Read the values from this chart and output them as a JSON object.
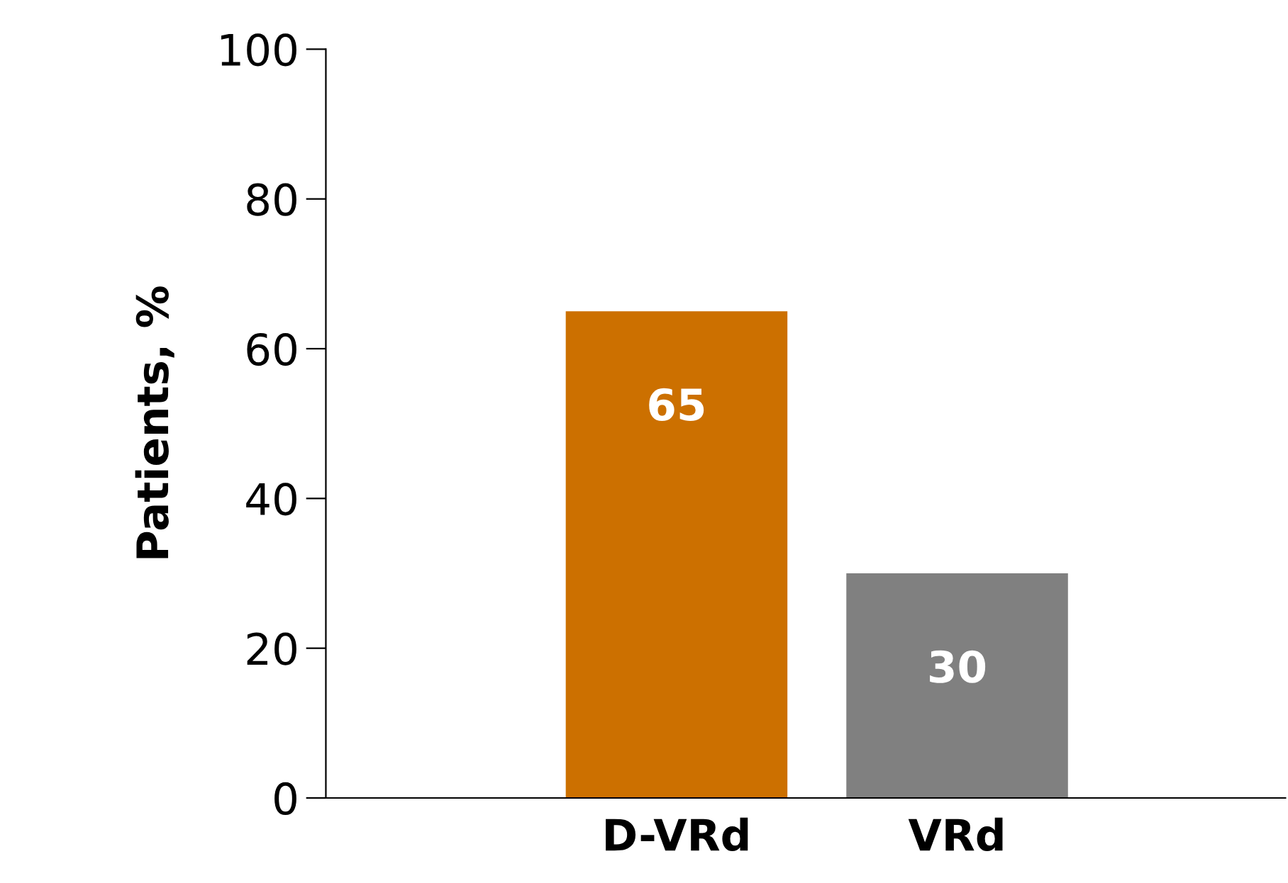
{
  "chart_data": {
    "type": "bar",
    "ylabel": "Patients, %",
    "categories": [
      "D-VRd",
      "VRd"
    ],
    "values": [
      65,
      30
    ],
    "colors": [
      "#cc7000",
      "#808080"
    ],
    "ylim": [
      0,
      100
    ],
    "yticks": [
      0,
      20,
      40,
      60,
      80,
      100
    ],
    "data_labels": true,
    "grid": false,
    "legend": false
  }
}
